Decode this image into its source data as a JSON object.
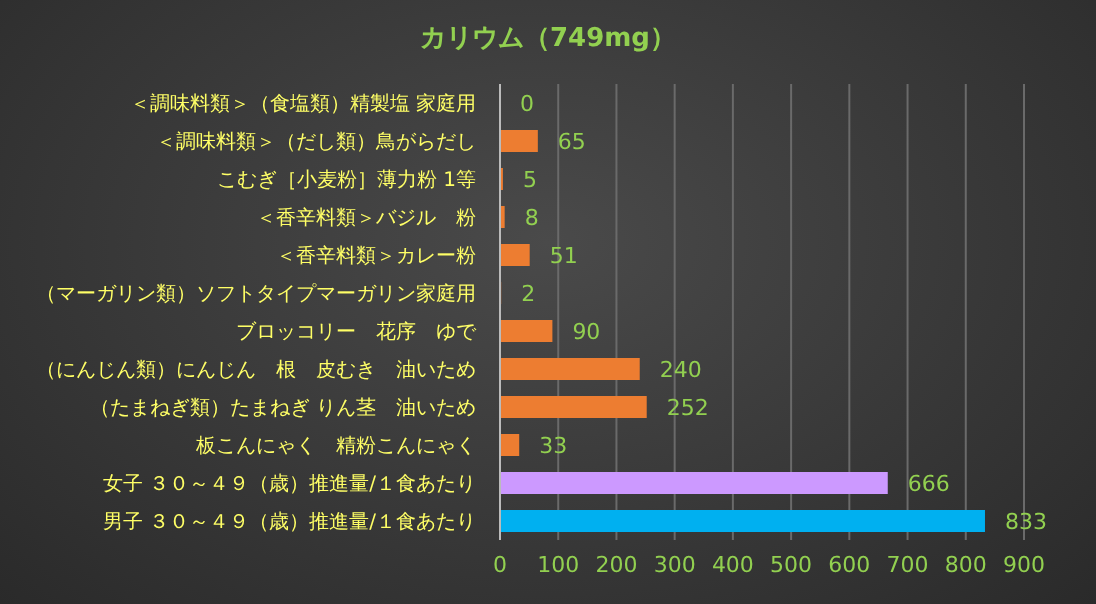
{
  "chart_data": {
    "type": "bar",
    "orientation": "horizontal",
    "title": "カリウム（749mg）",
    "categories": [
      "＜調味料類＞（食塩類）精製塩 家庭用",
      "＜調味料類＞（だし類）鳥がらだし",
      "こむぎ［小麦粉］薄力粉 1等",
      "＜香辛料類＞バジル　粉",
      "＜香辛料類＞カレー粉",
      "（マーガリン類）ソフトタイプマーガリン家庭用",
      "ブロッコリー　花序　ゆで",
      "（にんじん類）にんじん　根　皮むき　油いため",
      "（たまねぎ類）たまねぎ りん茎　油いため",
      "板こんにゃく　精粉こんにゃく",
      "女子 ３０～４９（歳）推進量/１食あたり",
      "男子 ３０～４９（歳）推進量/１食あたり"
    ],
    "values": [
      0,
      65,
      5,
      8,
      51,
      2,
      90,
      240,
      252,
      33,
      666,
      833
    ],
    "colors": [
      "#ed7d31",
      "#ed7d31",
      "#ed7d31",
      "#ed7d31",
      "#ed7d31",
      "#ed7d31",
      "#ed7d31",
      "#ed7d31",
      "#ed7d31",
      "#ed7d31",
      "#cc99ff",
      "#00b0f0"
    ],
    "xlim": [
      0,
      900
    ],
    "xticks": [
      0,
      100,
      200,
      300,
      400,
      500,
      600,
      700,
      800,
      900
    ],
    "grid": "x",
    "data_labels": true
  }
}
